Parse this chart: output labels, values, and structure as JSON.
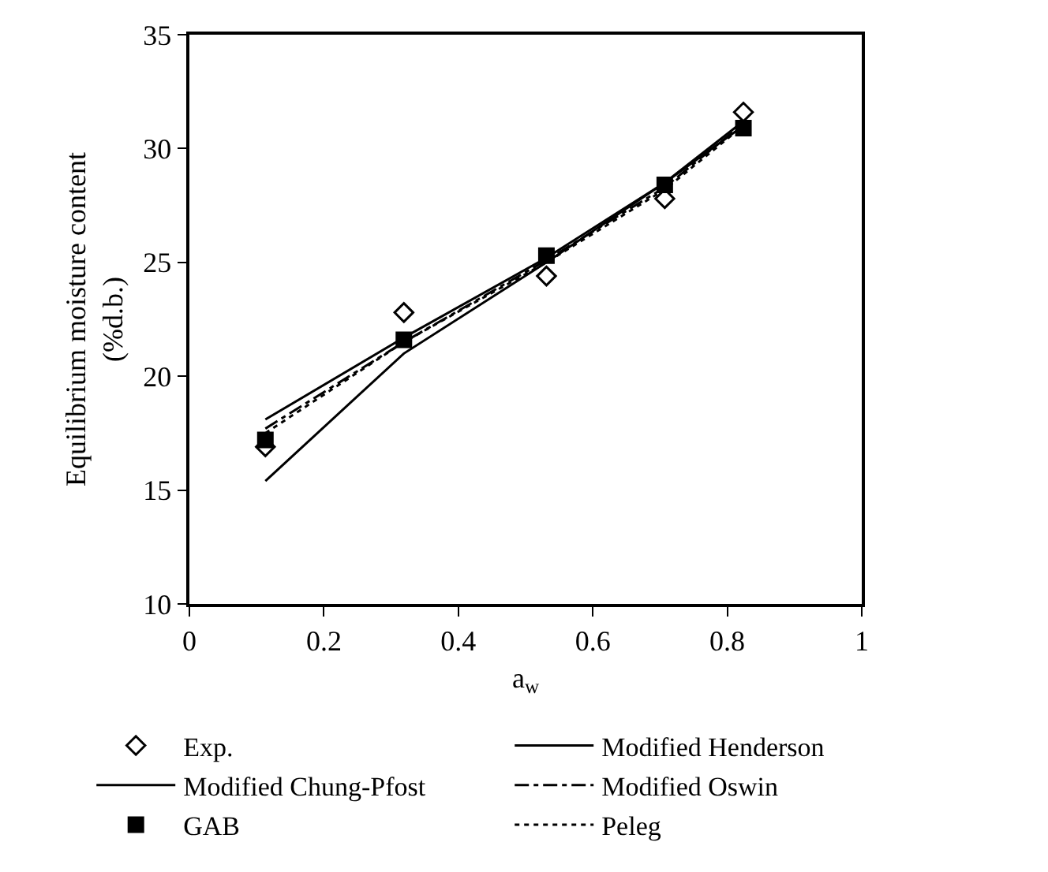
{
  "chart_data": {
    "type": "line",
    "xlabel": "a$_{w}$",
    "ylabel": "Equilibrium moisture content\n(%d.b.)",
    "x": [
      0.113,
      0.319,
      0.531,
      0.707,
      0.824
    ],
    "xlim": [
      0,
      1
    ],
    "xticks": [
      0,
      0.2,
      0.4,
      0.6,
      0.8,
      1
    ],
    "ylim": [
      10,
      35
    ],
    "yticks": [
      10,
      15,
      20,
      25,
      30,
      35
    ],
    "legend": "bottom",
    "series": [
      {
        "name": "Exp.",
        "type": "scatter",
        "marker": "diamond",
        "color": "#000000",
        "values": [
          16.9,
          22.8,
          24.4,
          27.8,
          31.6
        ]
      },
      {
        "name": "Modified Henderson",
        "marker": "none",
        "line_style": "solid",
        "color": "#000000",
        "values": [
          15.4,
          21.0,
          25.0,
          28.5,
          31.2
        ]
      },
      {
        "name": "Modified Chung-Pfost",
        "marker": "none",
        "line_style": "solid",
        "color": "#000000",
        "values": [
          18.1,
          21.7,
          25.2,
          28.5,
          31.0
        ]
      },
      {
        "name": "Modified Oswin",
        "marker": "none",
        "line_style": "dashed",
        "color": "#000000",
        "values": [
          17.7,
          21.5,
          25.1,
          28.3,
          31.1
        ]
      },
      {
        "name": "GAB",
        "type": "scatter",
        "marker": "square",
        "color": "#000000",
        "values": [
          17.2,
          21.6,
          25.3,
          28.4,
          30.9
        ]
      },
      {
        "name": "Peleg",
        "marker": "none",
        "line_style": "dotted",
        "color": "#000000",
        "values": [
          17.5,
          21.5,
          25.0,
          28.2,
          31.0
        ]
      }
    ]
  }
}
